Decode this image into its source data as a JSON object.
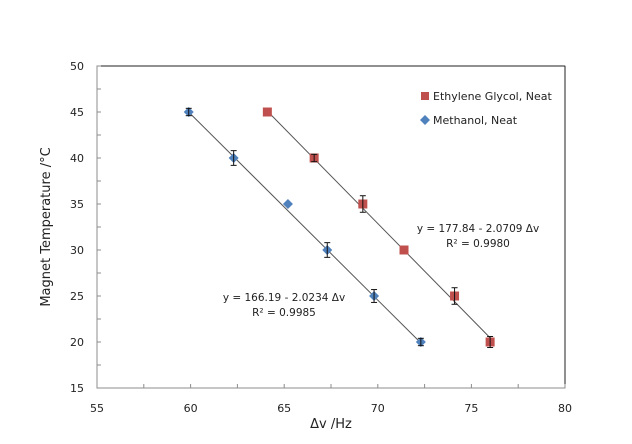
{
  "chart_data": {
    "type": "scatter",
    "title": "",
    "xlabel": "Δv /Hz",
    "ylabel": "Magnet Temperature /°C",
    "xlim": [
      55,
      80
    ],
    "ylim": [
      15,
      50
    ],
    "xticks": [
      55,
      60,
      65,
      70,
      75,
      80
    ],
    "yticks": [
      15,
      20,
      25,
      30,
      35,
      40,
      45,
      50
    ],
    "grid": false,
    "legend_position": "upper right",
    "series": [
      {
        "name": "Ethylene Glycol, Neat",
        "marker": "square",
        "color": "#C0504D",
        "x": [
          64.1,
          66.6,
          69.2,
          71.4,
          74.1,
          76.0
        ],
        "y": [
          45,
          40,
          35,
          30,
          25,
          20
        ],
        "yerr": [
          0.0,
          0.4,
          0.9,
          0.0,
          0.9,
          0.6
        ],
        "fit": {
          "intercept": 177.84,
          "slope": -2.0709,
          "r2": 0.998,
          "equation": "y = 177.84  - 2.0709  Δv",
          "r2_label": "R² = 0.9980"
        }
      },
      {
        "name": "Methanol, Neat",
        "marker": "diamond",
        "color": "#4F81BD",
        "x": [
          59.9,
          62.3,
          65.2,
          67.3,
          69.8,
          72.3
        ],
        "y": [
          45,
          40,
          35,
          30,
          25,
          20
        ],
        "yerr": [
          0.4,
          0.8,
          0.0,
          0.8,
          0.7,
          0.4
        ],
        "fit": {
          "intercept": 166.19,
          "slope": -2.0234,
          "r2": 0.9985,
          "equation": "y = 166.19  - 2.0234  Δv",
          "r2_label": "R² = 0.9985"
        }
      }
    ],
    "annotations": [
      {
        "text": "y = 177.84  - 2.0709  Δv",
        "x": 73.2,
        "y": 32.4
      },
      {
        "text": "R² = 0.9980",
        "x": 73.2,
        "y": 30.8
      },
      {
        "text": "y = 166.19  - 2.0234  Δv",
        "x": 67.3,
        "y": 24.6
      },
      {
        "text": "R² = 0.9985",
        "x": 67.3,
        "y": 23.0
      }
    ]
  },
  "legend": {
    "items": [
      {
        "label": "Ethylene Glycol, Neat",
        "color": "#C0504D",
        "marker": "square"
      },
      {
        "label": "Methanol, Neat",
        "color": "#4F81BD",
        "marker": "diamond"
      }
    ]
  },
  "axes": {
    "x_title": "Δv  /Hz",
    "y_title": "Magnet Temperature  /°C"
  },
  "fit_labels": {
    "eg_equation": "y = 177.84  - 2.0709  Δv",
    "eg_r2": "R² = 0.9980",
    "me_equation": "y = 166.19  - 2.0234  Δv",
    "me_r2": "R² = 0.9985"
  }
}
